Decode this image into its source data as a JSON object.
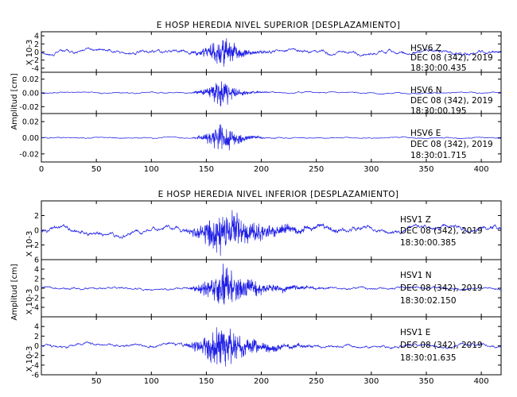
{
  "chart_data": [
    {
      "type": "line",
      "title": "E HOSP HEREDIA NIVEL SUPERIOR [DESPLAZAMIENTO]",
      "ylabel": "Amplitud [cm]",
      "xlim": [
        0,
        418
      ],
      "x_ticks": [
        "0",
        "50",
        "100",
        "150",
        "200",
        "250",
        "300",
        "350",
        "400"
      ],
      "series": [
        {
          "name": "HSV6 Z",
          "date": "DEC 08 (342), 2019",
          "time": "18:30:00.435",
          "scale_label": "X 10-3",
          "ylim": [
            -5,
            5
          ],
          "y_ticks": [
            "4",
            "2",
            "0",
            "-2",
            "-4"
          ],
          "noise": 0.7,
          "peak": 4.4,
          "burst_start": 132,
          "burst_end": 205,
          "burst_center": 167
        },
        {
          "name": "HSV6 N",
          "date": "DEC 08 (342), 2019",
          "time": "18:30:00.195",
          "scale_label": "",
          "ylim": [
            -0.03,
            0.03
          ],
          "y_ticks": [
            "0.02",
            "0.00",
            "-0.02"
          ],
          "noise": 0.0015,
          "peak": 0.024,
          "burst_start": 132,
          "burst_end": 200,
          "burst_center": 166
        },
        {
          "name": "HSV6 E",
          "date": "DEC 08 (342), 2019",
          "time": "18:30:01.715",
          "scale_label": "",
          "ylim": [
            -0.03,
            0.03
          ],
          "y_ticks": [
            "0.02",
            "0.00",
            "-0.02"
          ],
          "noise": 0.0012,
          "peak": 0.024,
          "burst_start": 135,
          "burst_end": 200,
          "burst_center": 167
        }
      ]
    },
    {
      "type": "line",
      "title": "E HOSP HEREDIA NIVEL INFERIOR [DESPLAZAMIENTO]",
      "ylabel": "Amplitud [cm]",
      "xlim": [
        0,
        418
      ],
      "x_ticks": [
        "50",
        "100",
        "150",
        "200",
        "250",
        "300",
        "350",
        "400"
      ],
      "series": [
        {
          "name": "HSV1 Z",
          "date": "DEC 08 (342), 2019",
          "time": "18:30:00.385",
          "scale_label": "X 10-3",
          "ylim": [
            -4,
            4
          ],
          "y_ticks": [
            "2",
            "0",
            "-2"
          ],
          "noise": 0.55,
          "peak": 3.6,
          "burst_start": 125,
          "burst_end": 270,
          "burst_center": 165
        },
        {
          "name": "HSV1 N",
          "date": "DEC 08 (342), 2019",
          "time": "18:30:02.150",
          "scale_label": "X 10-3",
          "ylim": [
            -6,
            6
          ],
          "y_ticks": [
            "6",
            "4",
            "2",
            "0",
            "-2",
            "-4"
          ],
          "noise": 0.4,
          "peak": 5.2,
          "burst_start": 130,
          "burst_end": 250,
          "burst_center": 166
        },
        {
          "name": "HSV1 E",
          "date": "DEC 08 (342), 2019",
          "time": "18:30:01.635",
          "scale_label": "X 10-3",
          "ylim": [
            -6,
            6
          ],
          "y_ticks": [
            "4",
            "2",
            "0",
            "-2",
            "-4",
            "-6"
          ],
          "noise": 0.5,
          "peak": 5.5,
          "burst_start": 125,
          "burst_end": 240,
          "burst_center": 165
        }
      ]
    }
  ],
  "colors": {
    "trace": "#1f1fe6",
    "axes": "#000000",
    "background": "#ffffff"
  }
}
